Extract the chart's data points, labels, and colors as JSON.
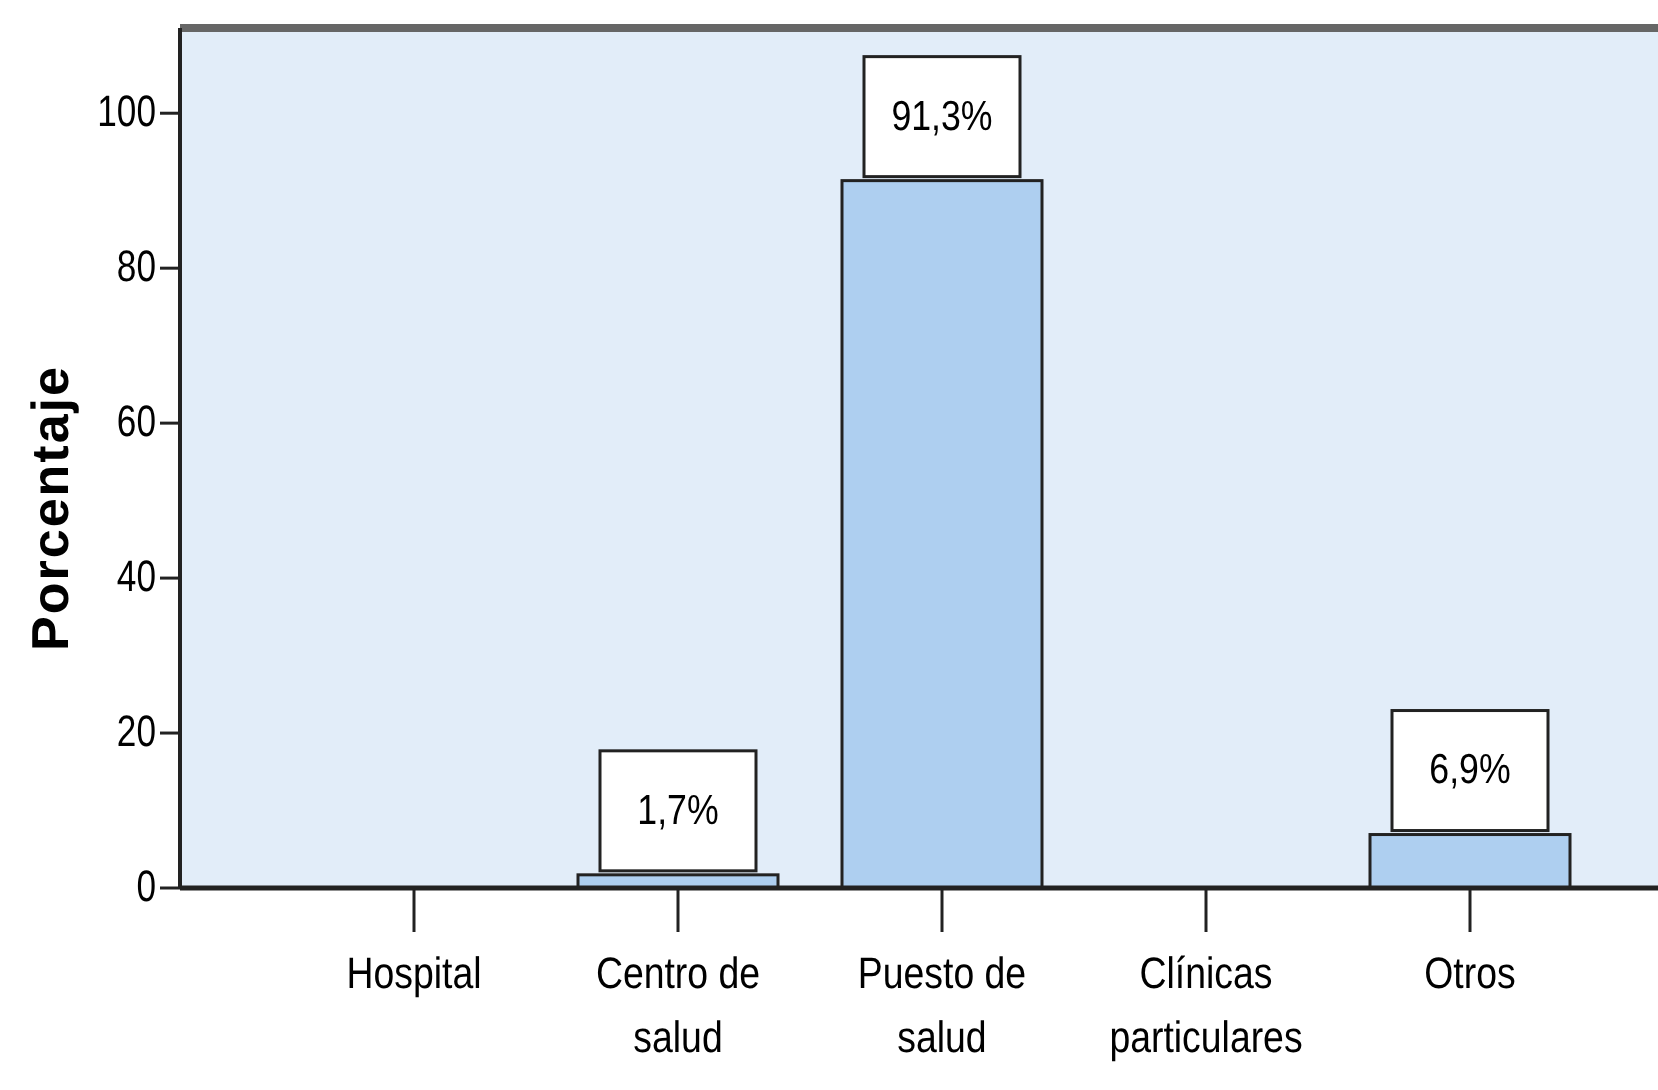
{
  "chart_data": {
    "type": "bar",
    "ylabel": "Porcentaje",
    "categories": [
      "Hospital",
      "Centro de salud",
      "Puesto de salud",
      "Clínicas particulares",
      "Otros"
    ],
    "values": [
      0,
      1.7,
      91.3,
      0,
      6.9
    ],
    "value_labels": [
      null,
      "1,7%",
      "91,3%",
      null,
      "6,9%"
    ],
    "color": "#aecff0",
    "ylim": [
      0,
      111
    ],
    "yticks": [
      0,
      20,
      40,
      60,
      80,
      100
    ]
  }
}
